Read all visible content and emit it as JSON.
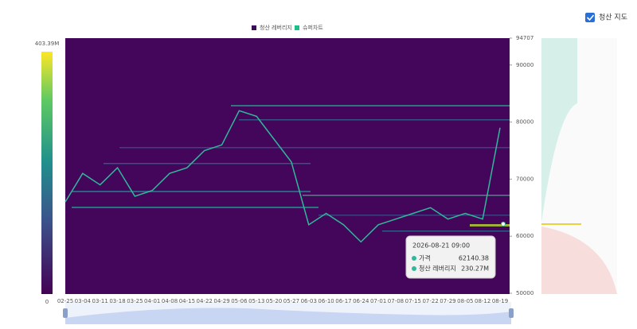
{
  "chart_data": {
    "type": "heatmap",
    "legend": [
      {
        "name": "청산 레버리지",
        "color": "#3b0b5c"
      },
      {
        "name": "슈퍼차트",
        "color": "#19c08a"
      }
    ],
    "toggle": {
      "label": "청산 지도",
      "checked": true
    },
    "categories": [
      "02-25",
      "03-04",
      "03-11",
      "03-18",
      "03-25",
      "04-01",
      "04-08",
      "04-15",
      "04-22",
      "04-29",
      "05-06",
      "05-13",
      "05-20",
      "05-27",
      "06-03",
      "06-10",
      "06-17",
      "06-24",
      "07-01",
      "07-08",
      "07-15",
      "07-22",
      "07-29",
      "08-05",
      "08-12",
      "08-19"
    ],
    "price": {
      "name": "가격",
      "color": "#2fb99a",
      "values": [
        66000,
        71000,
        69000,
        72000,
        67000,
        68000,
        71000,
        72000,
        75000,
        76000,
        82000,
        81000,
        77000,
        73000,
        62000,
        64000,
        62000,
        59000,
        62000,
        63000,
        64000,
        65000,
        63000,
        64000,
        63000,
        79000
      ]
    },
    "ylim": [
      50000,
      94707
    ],
    "yticks": [
      50000,
      60000,
      70000,
      80000,
      90000,
      94707
    ],
    "colorbar": {
      "ticks": [
        0,
        {
          "value": 403390000,
          "label": "403.39M"
        }
      ]
    },
    "tooltip": {
      "time": "2026-08-21 09:00",
      "rows": [
        {
          "name": "가격",
          "value": 62140.38
        },
        {
          "name": "청산 레버리지",
          "value": 230270000,
          "value_label": "230.27M"
        }
      ]
    }
  }
}
